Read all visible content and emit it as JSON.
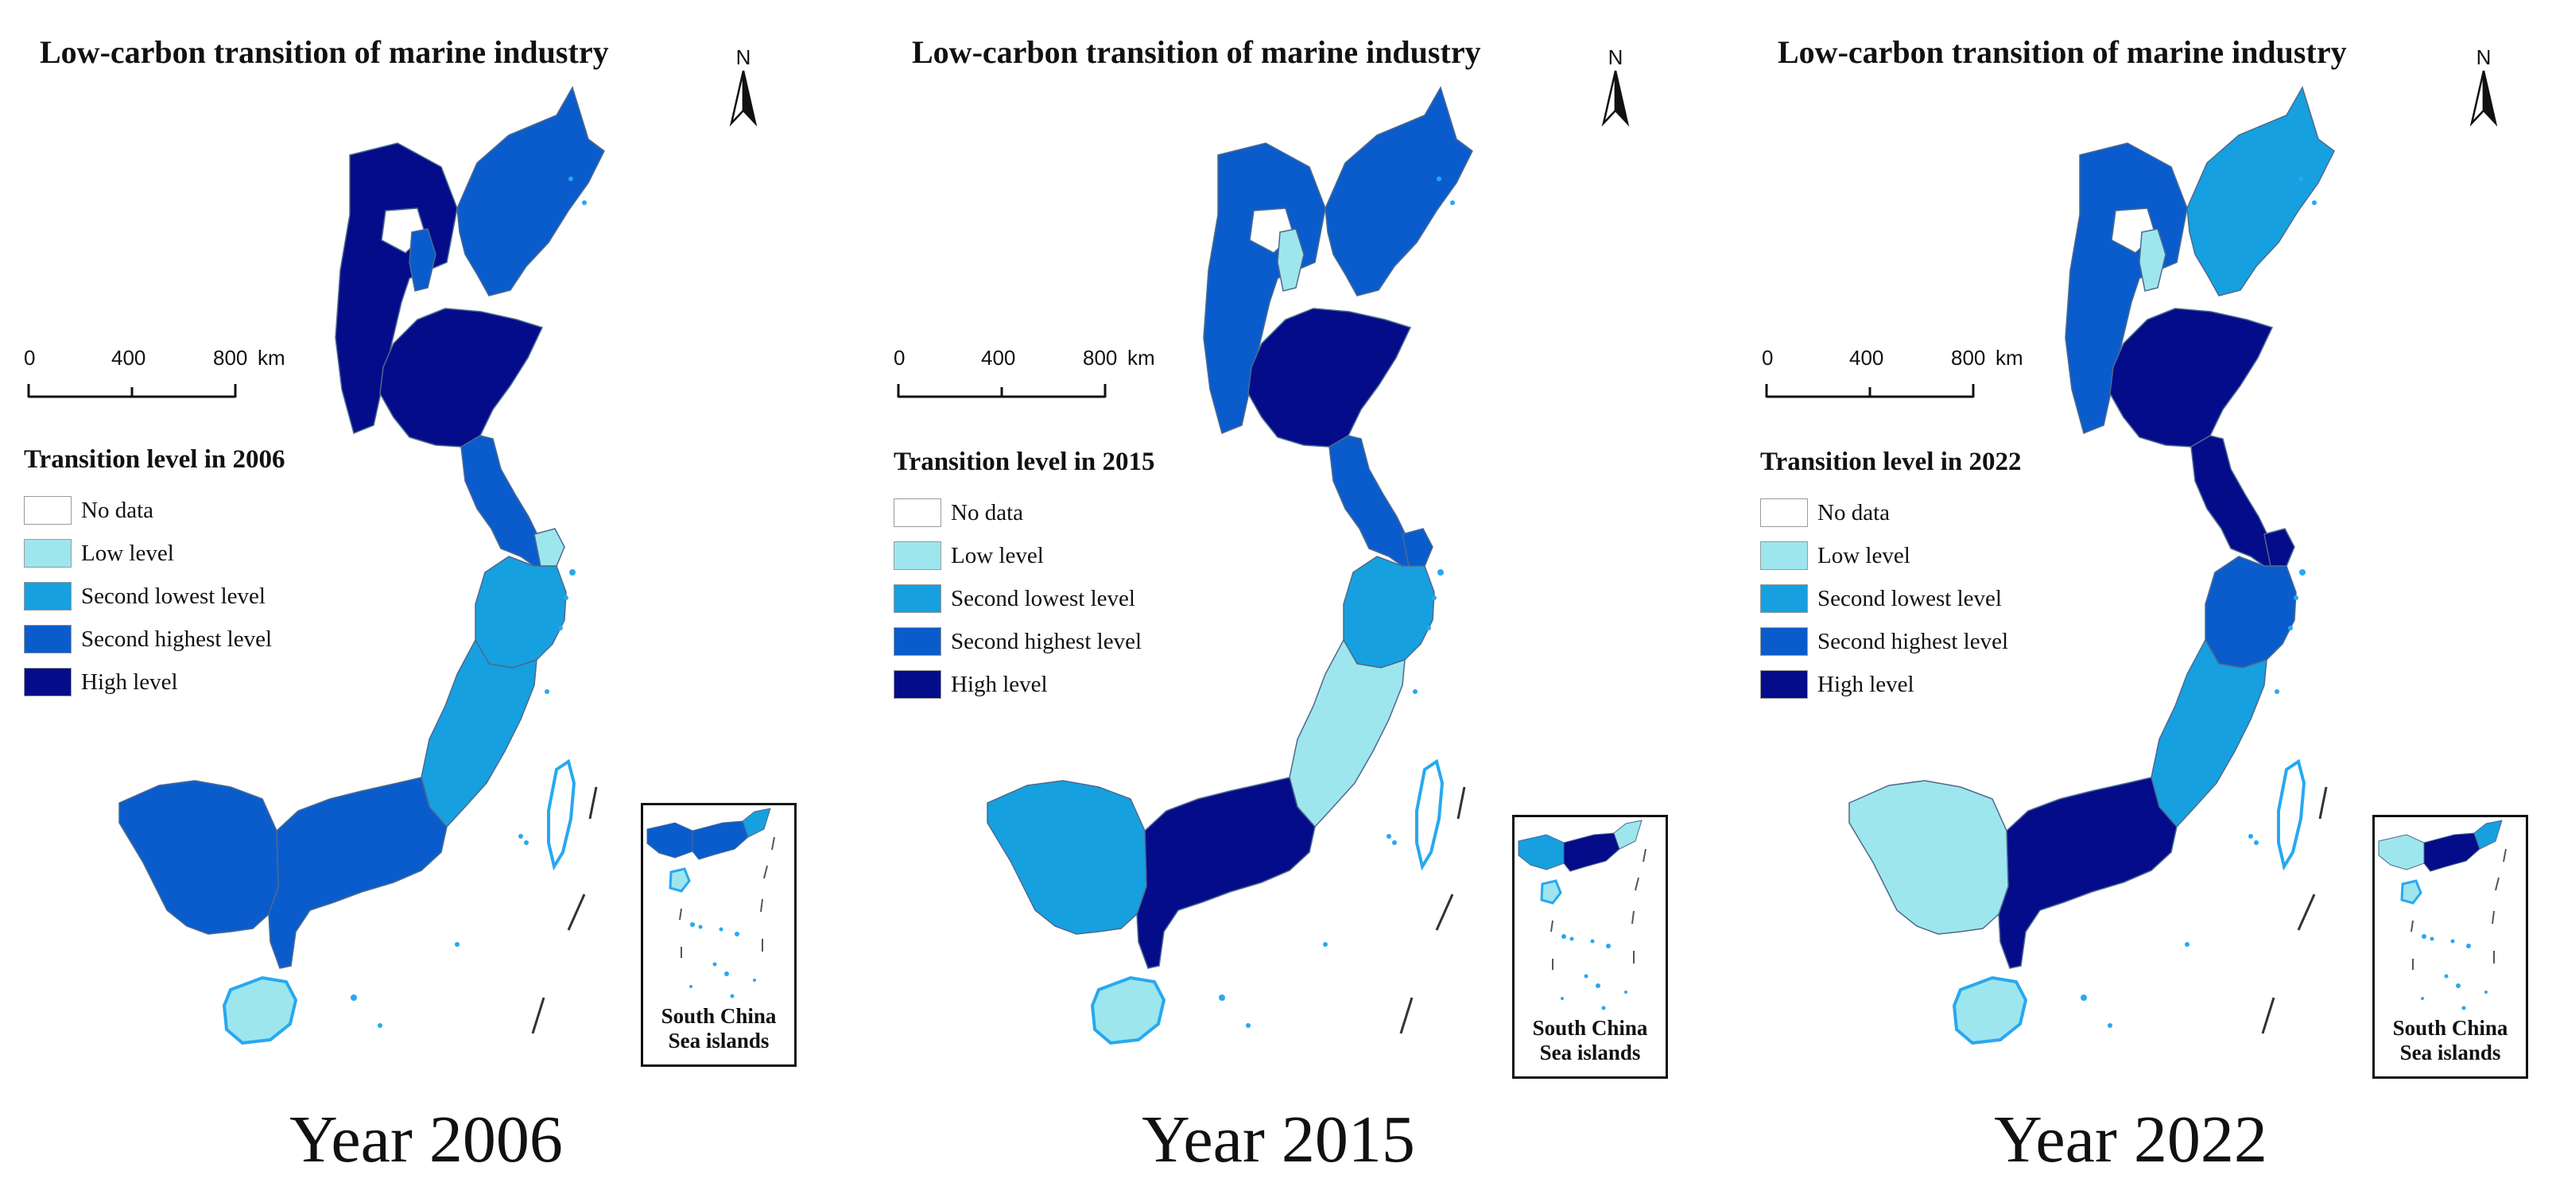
{
  "colors": {
    "no_data": "#ffffff",
    "low": "#9ee6ee",
    "second_lowest": "#16a0e0",
    "second_highest": "#0a5ccc",
    "high": "#050c8a",
    "coast_outline": "#28a8f0"
  },
  "common": {
    "map_title": "Low-carbon transition of marine industry",
    "north_label": "N",
    "scale": {
      "ticks": [
        "0",
        "400",
        "800"
      ],
      "unit": "km"
    },
    "inset_label_line1": "South China",
    "inset_label_line2": "Sea islands",
    "legend_items": [
      {
        "label": "No data",
        "level": "no_data"
      },
      {
        "label": "Low level",
        "level": "low"
      },
      {
        "label": "Second lowest level",
        "level": "second_lowest"
      },
      {
        "label": "Second highest level",
        "level": "second_highest"
      },
      {
        "label": "High level",
        "level": "high"
      }
    ]
  },
  "panels": [
    {
      "legend_title": "Transition level in 2006",
      "caption": "Year 2006",
      "provinces": {
        "liaoning": "second_highest",
        "hebei": "high",
        "beijing": "no_data",
        "tianjin": "second_highest",
        "shandong": "high",
        "jiangsu": "second_highest",
        "shanghai": "low",
        "zhejiang": "second_lowest",
        "fujian": "second_lowest",
        "guangdong": "second_highest",
        "guangxi": "second_highest",
        "hainan": "low"
      }
    },
    {
      "legend_title": "Transition level in 2015",
      "caption": "Year 2015",
      "provinces": {
        "liaoning": "second_highest",
        "hebei": "second_highest",
        "beijing": "no_data",
        "tianjin": "low",
        "shandong": "high",
        "jiangsu": "second_highest",
        "shanghai": "second_highest",
        "zhejiang": "second_lowest",
        "fujian": "low",
        "guangdong": "high",
        "guangxi": "second_lowest",
        "hainan": "low"
      }
    },
    {
      "legend_title": "Transition level in 2022",
      "caption": "Year 2022",
      "provinces": {
        "liaoning": "second_lowest",
        "hebei": "second_highest",
        "beijing": "no_data",
        "tianjin": "low",
        "shandong": "high",
        "jiangsu": "high",
        "shanghai": "high",
        "zhejiang": "second_highest",
        "fujian": "second_lowest",
        "guangdong": "high",
        "guangxi": "low",
        "hainan": "low"
      }
    }
  ]
}
